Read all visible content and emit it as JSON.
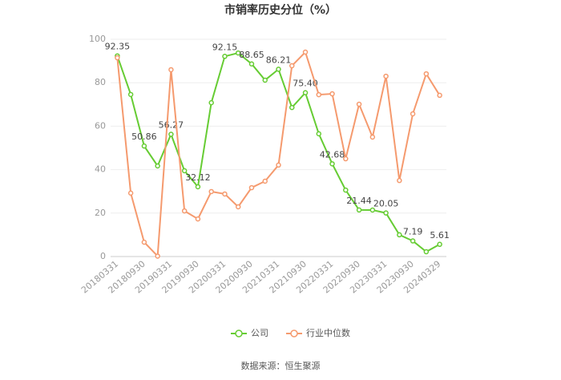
{
  "chart_data": {
    "type": "line",
    "title": "市销率历史分位（%）",
    "categories": [
      "20180331",
      null,
      "20180930",
      null,
      "20190331",
      null,
      "20190930",
      null,
      "20200331",
      null,
      "20200930",
      null,
      "20210331",
      null,
      "20210930",
      null,
      "20220331",
      null,
      "20220930",
      null,
      "20230331",
      null,
      "20230930",
      null,
      "20240329"
    ],
    "series": [
      {
        "name": "公司",
        "color": "#66cc33",
        "values": [
          92.35,
          74.6,
          50.86,
          41.7,
          56.27,
          39.5,
          32.12,
          70.8,
          92.15,
          93.7,
          88.65,
          81.2,
          86.21,
          68.6,
          75.4,
          56.5,
          42.68,
          30.6,
          21.44,
          21.4,
          20.05,
          10.0,
          7.19,
          2.2,
          5.61
        ],
        "value_labels": [
          "92.35",
          null,
          "50.86",
          null,
          "56.27",
          null,
          "32.12",
          null,
          "92.15",
          null,
          "88.65",
          null,
          "86.21",
          null,
          "75.40",
          null,
          "42.68",
          null,
          "21.44",
          null,
          "20.05",
          null,
          "7.19",
          null,
          "5.61"
        ]
      },
      {
        "name": "行业中位数",
        "color": "#f59a6e",
        "values": [
          91.5,
          29.2,
          6.6,
          0.2,
          86,
          21,
          17.3,
          29.9,
          28.8,
          22.9,
          31.7,
          34.7,
          42.1,
          87.8,
          94.1,
          74.5,
          74.9,
          45,
          70.1,
          55,
          83,
          35,
          65.7,
          84.1,
          74.2
        ]
      }
    ],
    "ylim": [
      0,
      100
    ],
    "yticks": [
      0,
      20,
      40,
      60,
      80,
      100
    ],
    "grid": true,
    "source": "数据来源：恒生聚源"
  }
}
